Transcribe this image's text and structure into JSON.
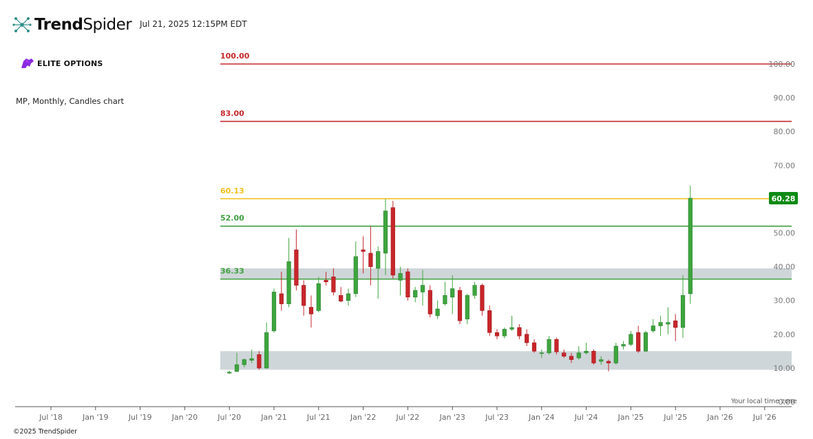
{
  "header": {
    "brand_bold": "Trend",
    "brand_light": "Spider",
    "timestamp": "Jul 21, 2025 12:15PM EDT",
    "logo_icon": "spider-network-icon"
  },
  "sponsor": {
    "name": "ELITE OPTIONS",
    "icon": "panther-icon",
    "accent": "#8a2be2"
  },
  "chart_description": "MP, Monthly, Candles chart",
  "footer": {
    "copyright": "©2025 TrendSpider",
    "local_time_label": "Your local time zone"
  },
  "chart_data": {
    "type": "candlestick",
    "ticker": "MP",
    "interval": "Monthly",
    "ylim": [
      0,
      100
    ],
    "yticks": [
      "0.00",
      "10.00",
      "20.00",
      "30.00",
      "40.00",
      "50.00",
      "60.00",
      "70.00",
      "80.00",
      "90.00",
      "100.00"
    ],
    "xtick_labels": [
      "Jul '18",
      "Jan '19",
      "Jul '19",
      "Jan '20",
      "Jul '20",
      "Jan '21",
      "Jul '21",
      "Jan '22",
      "Jul '22",
      "Jan '23",
      "Jul '23",
      "Jan '24",
      "Jul '24",
      "Jan '25",
      "Jul '25",
      "Jan '26",
      "Jul '26"
    ],
    "last_price": "60.28",
    "colors": {
      "up": "#3da63d",
      "down": "#c8262b",
      "resistance": "#c62828",
      "yellow": "#f2c019",
      "support": "#3d9f3d",
      "zone": "#cfd6d9",
      "price_tag": "#0d8a14"
    },
    "levels": [
      {
        "value": 100.0,
        "label": "100.00",
        "color": "#c62828"
      },
      {
        "value": 83.0,
        "label": "83.00",
        "color": "#c62828"
      },
      {
        "value": 60.13,
        "label": "60.13",
        "color": "#f2c019"
      },
      {
        "value": 52.0,
        "label": "52.00",
        "color": "#3d9f3d"
      },
      {
        "value": 36.33,
        "label": "36.33",
        "color": "#3d9f3d"
      }
    ],
    "zones": [
      {
        "from": 36.33,
        "to": 39.5
      },
      {
        "from": 9.5,
        "to": 15.0
      }
    ],
    "candles": [
      {
        "date": "2020-07",
        "o": 8.5,
        "h": 9.2,
        "l": 8.3,
        "c": 8.8
      },
      {
        "date": "2020-08",
        "o": 9.0,
        "h": 14.5,
        "l": 8.8,
        "c": 11.0
      },
      {
        "date": "2020-09",
        "o": 11.0,
        "h": 12.8,
        "l": 10.2,
        "c": 12.5
      },
      {
        "date": "2020-10",
        "o": 12.3,
        "h": 15.5,
        "l": 11.5,
        "c": 12.8
      },
      {
        "date": "2020-11",
        "o": 14.0,
        "h": 15.0,
        "l": 9.5,
        "c": 10.0
      },
      {
        "date": "2020-12",
        "o": 10.0,
        "h": 23.5,
        "l": 9.8,
        "c": 20.5
      },
      {
        "date": "2021-01",
        "o": 21.0,
        "h": 33.5,
        "l": 20.5,
        "c": 32.5
      },
      {
        "date": "2021-02",
        "o": 32.0,
        "h": 38.5,
        "l": 27.0,
        "c": 29.0
      },
      {
        "date": "2021-03",
        "o": 29.0,
        "h": 48.5,
        "l": 28.0,
        "c": 41.5
      },
      {
        "date": "2021-04",
        "o": 45.0,
        "h": 51.0,
        "l": 33.0,
        "c": 34.5
      },
      {
        "date": "2021-05",
        "o": 34.5,
        "h": 36.0,
        "l": 25.5,
        "c": 28.5
      },
      {
        "date": "2021-06",
        "o": 28.0,
        "h": 31.5,
        "l": 22.0,
        "c": 26.0
      },
      {
        "date": "2021-07",
        "o": 27.0,
        "h": 37.0,
        "l": 26.5,
        "c": 35.0
      },
      {
        "date": "2021-08",
        "o": 36.0,
        "h": 38.5,
        "l": 34.5,
        "c": 35.5
      },
      {
        "date": "2021-09",
        "o": 37.0,
        "h": 39.5,
        "l": 31.5,
        "c": 32.5
      },
      {
        "date": "2021-10",
        "o": 31.5,
        "h": 34.0,
        "l": 29.5,
        "c": 29.8
      },
      {
        "date": "2021-11",
        "o": 30.0,
        "h": 33.5,
        "l": 28.5,
        "c": 32.0
      },
      {
        "date": "2021-12",
        "o": 32.0,
        "h": 47.5,
        "l": 31.0,
        "c": 43.0
      },
      {
        "date": "2022-01",
        "o": 45.0,
        "h": 49.0,
        "l": 38.0,
        "c": 44.5
      },
      {
        "date": "2022-02",
        "o": 44.0,
        "h": 52.0,
        "l": 34.5,
        "c": 40.0
      },
      {
        "date": "2022-03",
        "o": 39.5,
        "h": 46.0,
        "l": 30.5,
        "c": 44.5
      },
      {
        "date": "2022-04",
        "o": 44.0,
        "h": 60.0,
        "l": 37.5,
        "c": 56.5
      },
      {
        "date": "2022-05",
        "o": 57.5,
        "h": 59.5,
        "l": 36.5,
        "c": 37.5
      },
      {
        "date": "2022-06",
        "o": 36.0,
        "h": 40.0,
        "l": 31.5,
        "c": 38.0
      },
      {
        "date": "2022-07",
        "o": 38.5,
        "h": 39.5,
        "l": 30.0,
        "c": 31.0
      },
      {
        "date": "2022-08",
        "o": 31.0,
        "h": 34.0,
        "l": 29.5,
        "c": 33.0
      },
      {
        "date": "2022-09",
        "o": 32.5,
        "h": 39.0,
        "l": 28.5,
        "c": 34.5
      },
      {
        "date": "2022-10",
        "o": 33.0,
        "h": 34.5,
        "l": 25.0,
        "c": 26.0
      },
      {
        "date": "2022-11",
        "o": 25.5,
        "h": 30.0,
        "l": 24.5,
        "c": 27.5
      },
      {
        "date": "2022-12",
        "o": 29.0,
        "h": 35.5,
        "l": 28.5,
        "c": 31.5
      },
      {
        "date": "2023-01",
        "o": 31.0,
        "h": 37.5,
        "l": 26.0,
        "c": 33.5
      },
      {
        "date": "2023-02",
        "o": 33.0,
        "h": 34.0,
        "l": 23.0,
        "c": 24.0
      },
      {
        "date": "2023-03",
        "o": 24.5,
        "h": 32.0,
        "l": 23.0,
        "c": 31.5
      },
      {
        "date": "2023-04",
        "o": 31.5,
        "h": 35.5,
        "l": 30.5,
        "c": 34.5
      },
      {
        "date": "2023-05",
        "o": 34.5,
        "h": 35.0,
        "l": 25.5,
        "c": 27.0
      },
      {
        "date": "2023-06",
        "o": 27.0,
        "h": 28.5,
        "l": 19.5,
        "c": 20.5
      },
      {
        "date": "2023-07",
        "o": 20.5,
        "h": 21.5,
        "l": 18.5,
        "c": 19.5
      },
      {
        "date": "2023-08",
        "o": 19.5,
        "h": 22.0,
        "l": 18.8,
        "c": 21.5
      },
      {
        "date": "2023-09",
        "o": 21.5,
        "h": 25.5,
        "l": 21.0,
        "c": 22.0
      },
      {
        "date": "2023-10",
        "o": 22.0,
        "h": 23.0,
        "l": 18.5,
        "c": 19.5
      },
      {
        "date": "2023-11",
        "o": 20.0,
        "h": 21.5,
        "l": 16.5,
        "c": 17.5
      },
      {
        "date": "2023-12",
        "o": 17.5,
        "h": 18.5,
        "l": 14.5,
        "c": 15.0
      },
      {
        "date": "2024-01",
        "o": 14.5,
        "h": 15.5,
        "l": 13.0,
        "c": 14.5
      },
      {
        "date": "2024-02",
        "o": 14.5,
        "h": 19.5,
        "l": 14.0,
        "c": 18.5
      },
      {
        "date": "2024-03",
        "o": 18.5,
        "h": 19.0,
        "l": 14.0,
        "c": 14.8
      },
      {
        "date": "2024-04",
        "o": 14.5,
        "h": 15.5,
        "l": 13.0,
        "c": 13.5
      },
      {
        "date": "2024-05",
        "o": 13.5,
        "h": 14.5,
        "l": 11.5,
        "c": 12.5
      },
      {
        "date": "2024-06",
        "o": 13.0,
        "h": 16.5,
        "l": 12.5,
        "c": 14.5
      },
      {
        "date": "2024-07",
        "o": 14.5,
        "h": 17.5,
        "l": 14.0,
        "c": 15.0
      },
      {
        "date": "2024-08",
        "o": 15.0,
        "h": 15.5,
        "l": 11.0,
        "c": 11.5
      },
      {
        "date": "2024-09",
        "o": 12.0,
        "h": 13.5,
        "l": 11.0,
        "c": 12.5
      },
      {
        "date": "2024-10",
        "o": 12.0,
        "h": 12.5,
        "l": 9.0,
        "c": 11.5
      },
      {
        "date": "2024-11",
        "o": 11.5,
        "h": 17.5,
        "l": 11.0,
        "c": 16.5
      },
      {
        "date": "2024-12",
        "o": 16.5,
        "h": 18.0,
        "l": 15.5,
        "c": 17.0
      },
      {
        "date": "2025-01",
        "o": 17.0,
        "h": 21.0,
        "l": 16.5,
        "c": 20.0
      },
      {
        "date": "2025-02",
        "o": 20.5,
        "h": 22.5,
        "l": 14.5,
        "c": 15.0
      },
      {
        "date": "2025-03",
        "o": 15.0,
        "h": 21.0,
        "l": 14.8,
        "c": 20.5
      },
      {
        "date": "2025-04",
        "o": 21.0,
        "h": 24.5,
        "l": 20.5,
        "c": 22.5
      },
      {
        "date": "2025-05",
        "o": 22.5,
        "h": 25.5,
        "l": 19.5,
        "c": 23.5
      },
      {
        "date": "2025-06",
        "o": 23.0,
        "h": 28.0,
        "l": 20.0,
        "c": 23.5
      },
      {
        "date": "2025-07",
        "o": 24.0,
        "h": 26.0,
        "l": 18.0,
        "c": 22.0
      },
      {
        "date": "2025-08",
        "o": 22.0,
        "h": 37.5,
        "l": 19.0,
        "c": 31.5
      },
      {
        "date": "2025-09",
        "o": 32.0,
        "h": 64.0,
        "l": 29.0,
        "c": 60.28
      }
    ]
  }
}
